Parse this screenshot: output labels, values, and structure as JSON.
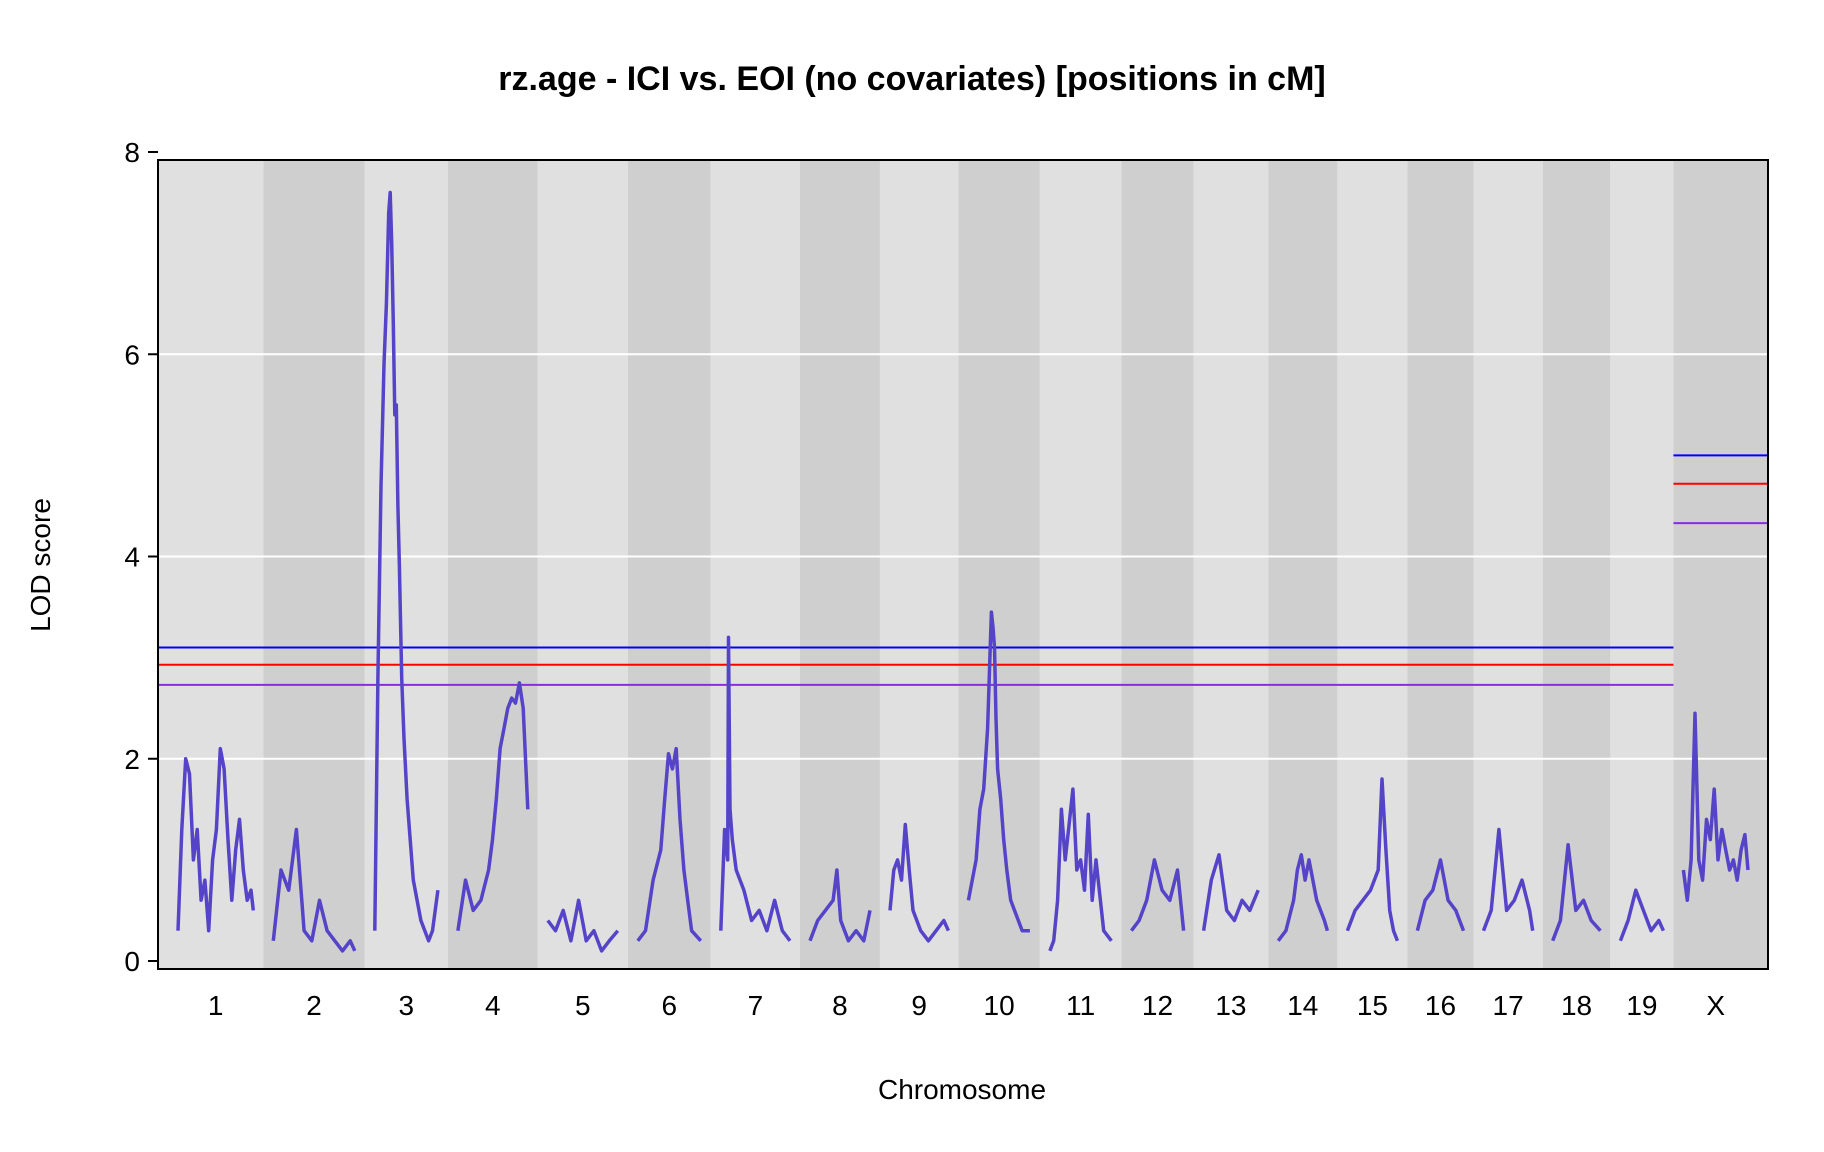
{
  "chart_data": {
    "type": "line",
    "title": "rz.age - ICI vs. EOI (no covariates) [positions in cM]",
    "xlabel": "Chromosome",
    "ylabel": "LOD score",
    "ylim": [
      0,
      8
    ],
    "yticks": [
      0,
      2,
      4,
      6,
      8
    ],
    "grid": true,
    "series_color": "#5544c8",
    "chromosomes": [
      {
        "label": "1",
        "length": 98
      },
      {
        "label": "2",
        "length": 106
      },
      {
        "label": "3",
        "length": 82
      },
      {
        "label": "4",
        "length": 91
      },
      {
        "label": "5",
        "length": 91
      },
      {
        "label": "6",
        "length": 82
      },
      {
        "label": "7",
        "length": 90
      },
      {
        "label": "8",
        "length": 78
      },
      {
        "label": "9",
        "length": 76
      },
      {
        "label": "10",
        "length": 80
      },
      {
        "label": "11",
        "length": 80
      },
      {
        "label": "12",
        "length": 68
      },
      {
        "label": "13",
        "length": 71
      },
      {
        "label": "14",
        "length": 64
      },
      {
        "label": "15",
        "length": 65
      },
      {
        "label": "16",
        "length": 60
      },
      {
        "label": "17",
        "length": 64
      },
      {
        "label": "18",
        "length": 62
      },
      {
        "label": "19",
        "length": 56
      },
      {
        "label": "X",
        "length": 84
      }
    ],
    "series": [
      {
        "chr": "1",
        "pos": [
          0,
          5,
          10,
          15,
          20,
          25,
          30,
          35,
          40,
          45,
          50,
          55,
          60,
          65,
          70,
          75,
          80,
          85,
          90,
          95,
          98
        ],
        "lod": [
          0.3,
          1.3,
          2.0,
          1.85,
          1.0,
          1.3,
          0.6,
          0.8,
          0.3,
          1.0,
          1.3,
          2.1,
          1.9,
          1.2,
          0.6,
          1.1,
          1.4,
          0.9,
          0.6,
          0.7,
          0.5
        ]
      },
      {
        "chr": "2",
        "pos": [
          0,
          10,
          20,
          30,
          40,
          50,
          60,
          70,
          80,
          90,
          100,
          106
        ],
        "lod": [
          0.2,
          0.9,
          0.7,
          1.3,
          0.3,
          0.2,
          0.6,
          0.3,
          0.2,
          0.1,
          0.2,
          0.1
        ]
      },
      {
        "chr": "3",
        "pos": [
          0,
          4,
          8,
          12,
          15,
          18,
          20,
          22,
          24,
          26,
          28,
          30,
          32,
          35,
          38,
          42,
          46,
          50,
          55,
          60,
          65,
          70,
          75,
          82
        ],
        "lod": [
          0.3,
          2.8,
          4.7,
          5.9,
          6.5,
          7.4,
          7.6,
          7.1,
          6.3,
          5.4,
          5.5,
          4.5,
          3.9,
          2.8,
          2.2,
          1.6,
          1.2,
          0.8,
          0.6,
          0.4,
          0.3,
          0.2,
          0.3,
          0.7
        ]
      },
      {
        "chr": "4",
        "pos": [
          0,
          10,
          20,
          30,
          40,
          45,
          50,
          55,
          60,
          65,
          70,
          75,
          80,
          85,
          91
        ],
        "lod": [
          0.3,
          0.8,
          0.5,
          0.6,
          0.9,
          1.2,
          1.6,
          2.1,
          2.3,
          2.5,
          2.6,
          2.55,
          2.75,
          2.5,
          1.5
        ]
      },
      {
        "chr": "5",
        "pos": [
          0,
          10,
          20,
          30,
          40,
          50,
          60,
          70,
          80,
          91
        ],
        "lod": [
          0.4,
          0.3,
          0.5,
          0.2,
          0.6,
          0.2,
          0.3,
          0.1,
          0.2,
          0.3
        ]
      },
      {
        "chr": "6",
        "pos": [
          0,
          10,
          20,
          30,
          35,
          40,
          45,
          50,
          55,
          60,
          65,
          70,
          82
        ],
        "lod": [
          0.2,
          0.3,
          0.8,
          1.1,
          1.6,
          2.05,
          1.9,
          2.1,
          1.4,
          0.9,
          0.6,
          0.3,
          0.2
        ]
      },
      {
        "chr": "7",
        "pos": [
          0,
          5,
          9,
          10,
          12,
          15,
          20,
          30,
          40,
          50,
          60,
          70,
          80,
          90
        ],
        "lod": [
          0.3,
          1.3,
          1.0,
          3.2,
          1.5,
          1.2,
          0.9,
          0.7,
          0.4,
          0.5,
          0.3,
          0.6,
          0.3,
          0.2
        ]
      },
      {
        "chr": "8",
        "pos": [
          0,
          10,
          20,
          30,
          35,
          40,
          50,
          60,
          70,
          78
        ],
        "lod": [
          0.2,
          0.4,
          0.5,
          0.6,
          0.9,
          0.4,
          0.2,
          0.3,
          0.2,
          0.5
        ]
      },
      {
        "chr": "9",
        "pos": [
          0,
          5,
          10,
          15,
          20,
          25,
          30,
          40,
          50,
          60,
          70,
          76
        ],
        "lod": [
          0.5,
          0.9,
          1.0,
          0.8,
          1.35,
          0.9,
          0.5,
          0.3,
          0.2,
          0.3,
          0.4,
          0.3
        ]
      },
      {
        "chr": "10",
        "pos": [
          0,
          10,
          15,
          20,
          25,
          28,
          30,
          32,
          34,
          36,
          38,
          42,
          46,
          50,
          55,
          60,
          70,
          80
        ],
        "lod": [
          0.6,
          1.0,
          1.5,
          1.7,
          2.3,
          3.0,
          3.45,
          3.3,
          3.1,
          2.4,
          1.9,
          1.6,
          1.2,
          0.9,
          0.6,
          0.5,
          0.3,
          0.3
        ]
      },
      {
        "chr": "11",
        "pos": [
          0,
          5,
          10,
          15,
          20,
          25,
          30,
          35,
          40,
          45,
          50,
          55,
          60,
          70,
          80
        ],
        "lod": [
          0.1,
          0.2,
          0.6,
          1.5,
          1.0,
          1.35,
          1.7,
          0.9,
          1.0,
          0.7,
          1.45,
          0.6,
          1.0,
          0.3,
          0.2
        ]
      },
      {
        "chr": "12",
        "pos": [
          0,
          10,
          20,
          30,
          40,
          50,
          60,
          68
        ],
        "lod": [
          0.3,
          0.4,
          0.6,
          1.0,
          0.7,
          0.6,
          0.9,
          0.3
        ]
      },
      {
        "chr": "13",
        "pos": [
          0,
          10,
          20,
          30,
          40,
          50,
          60,
          71
        ],
        "lod": [
          0.3,
          0.8,
          1.05,
          0.5,
          0.4,
          0.6,
          0.5,
          0.7
        ]
      },
      {
        "chr": "14",
        "pos": [
          0,
          10,
          20,
          25,
          30,
          35,
          40,
          50,
          60,
          64
        ],
        "lod": [
          0.2,
          0.3,
          0.6,
          0.9,
          1.05,
          0.8,
          1.0,
          0.6,
          0.4,
          0.3
        ]
      },
      {
        "chr": "15",
        "pos": [
          0,
          10,
          20,
          30,
          40,
          45,
          50,
          55,
          60,
          65
        ],
        "lod": [
          0.3,
          0.5,
          0.6,
          0.7,
          0.9,
          1.8,
          1.1,
          0.5,
          0.3,
          0.2
        ]
      },
      {
        "chr": "16",
        "pos": [
          0,
          10,
          20,
          30,
          40,
          50,
          60
        ],
        "lod": [
          0.3,
          0.6,
          0.7,
          1.0,
          0.6,
          0.5,
          0.3
        ]
      },
      {
        "chr": "17",
        "pos": [
          0,
          10,
          20,
          30,
          40,
          50,
          60,
          64
        ],
        "lod": [
          0.3,
          0.5,
          1.3,
          0.5,
          0.6,
          0.8,
          0.5,
          0.3
        ]
      },
      {
        "chr": "18",
        "pos": [
          0,
          10,
          20,
          30,
          40,
          50,
          62
        ],
        "lod": [
          0.2,
          0.4,
          1.15,
          0.5,
          0.6,
          0.4,
          0.3
        ]
      },
      {
        "chr": "19",
        "pos": [
          0,
          10,
          20,
          30,
          40,
          50,
          56
        ],
        "lod": [
          0.2,
          0.4,
          0.7,
          0.5,
          0.3,
          0.4,
          0.3
        ]
      },
      {
        "chr": "X",
        "pos": [
          0,
          5,
          10,
          15,
          20,
          25,
          30,
          35,
          40,
          45,
          50,
          55,
          60,
          65,
          70,
          75,
          80,
          84
        ],
        "lod": [
          0.9,
          0.6,
          1.0,
          2.45,
          1.0,
          0.8,
          1.4,
          1.2,
          1.7,
          1.0,
          1.3,
          1.1,
          0.9,
          1.0,
          0.8,
          1.1,
          1.25,
          0.9
        ]
      }
    ],
    "thresholds": [
      {
        "color": "#0000ff",
        "autosome": 3.1,
        "x": 5.0
      },
      {
        "color": "#ff0000",
        "autosome": 2.93,
        "x": 4.72
      },
      {
        "color": "#8a2be2",
        "autosome": 2.73,
        "x": 4.33
      }
    ]
  }
}
